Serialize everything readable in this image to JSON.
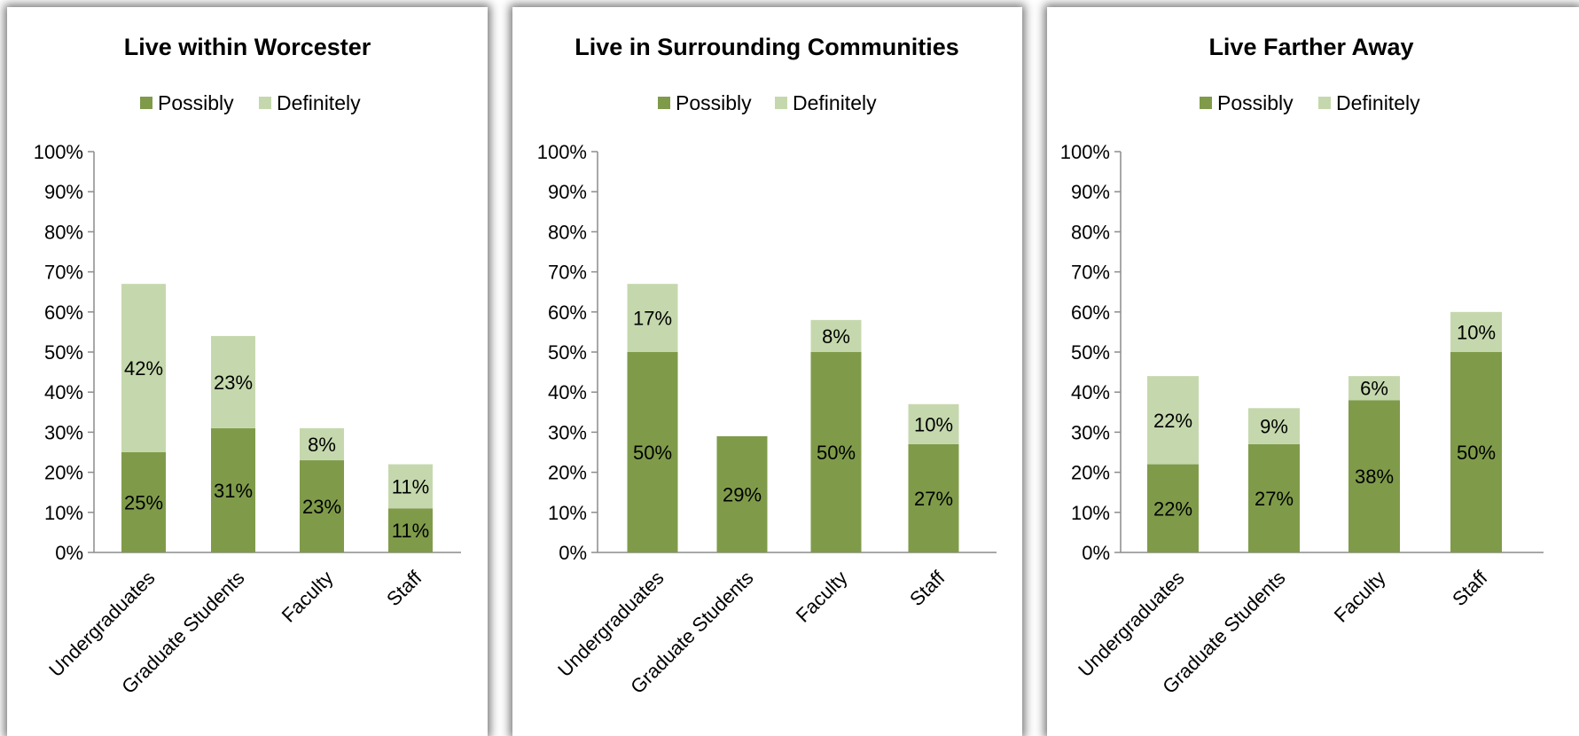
{
  "colors": {
    "possibly": "#7f9b4a",
    "definitely": "#c5d8ad",
    "axis": "#8c8c8c"
  },
  "chart_data": [
    {
      "type": "bar",
      "stacked": true,
      "title": "Live within Worcester",
      "categories": [
        "Undergraduates",
        "Graduate Students",
        "Faculty",
        "Staff"
      ],
      "series": [
        {
          "name": "Possibly",
          "values": [
            25,
            31,
            23,
            11
          ],
          "labels": [
            "25%",
            "31%",
            "23%",
            "11%"
          ]
        },
        {
          "name": "Definitely",
          "values": [
            42,
            23,
            8,
            11
          ],
          "labels": [
            "42%",
            "23%",
            "8%",
            "11%"
          ]
        }
      ],
      "yticks": [
        "0%",
        "10%",
        "20%",
        "30%",
        "40%",
        "50%",
        "60%",
        "70%",
        "80%",
        "90%",
        "100%"
      ],
      "ylim": [
        0,
        100
      ],
      "legend": "top"
    },
    {
      "type": "bar",
      "stacked": true,
      "title": "Live in Surrounding Communities",
      "categories": [
        "Undergraduates",
        "Graduate Students",
        "Faculty",
        "Staff"
      ],
      "series": [
        {
          "name": "Possibly",
          "values": [
            50,
            29,
            50,
            27
          ],
          "labels": [
            "50%",
            "29%",
            "50%",
            "27%"
          ]
        },
        {
          "name": "Definitely",
          "values": [
            17,
            0,
            8,
            10
          ],
          "labels": [
            "17%",
            "",
            "8%",
            "10%"
          ]
        }
      ],
      "yticks": [
        "0%",
        "10%",
        "20%",
        "30%",
        "40%",
        "50%",
        "60%",
        "70%",
        "80%",
        "90%",
        "100%"
      ],
      "ylim": [
        0,
        100
      ],
      "legend": "top"
    },
    {
      "type": "bar",
      "stacked": true,
      "title": "Live Farther Away",
      "categories": [
        "Undergraduates",
        "Graduate Students",
        "Faculty",
        "Staff"
      ],
      "series": [
        {
          "name": "Possibly",
          "values": [
            22,
            27,
            38,
            50
          ],
          "labels": [
            "22%",
            "27%",
            "38%",
            "50%"
          ]
        },
        {
          "name": "Definitely",
          "values": [
            22,
            9,
            6,
            10
          ],
          "labels": [
            "22%",
            "9%",
            "6%",
            "10%"
          ]
        }
      ],
      "yticks": [
        "0%",
        "10%",
        "20%",
        "30%",
        "40%",
        "50%",
        "60%",
        "70%",
        "80%",
        "90%",
        "100%"
      ],
      "ylim": [
        0,
        100
      ],
      "legend": "top"
    }
  ]
}
